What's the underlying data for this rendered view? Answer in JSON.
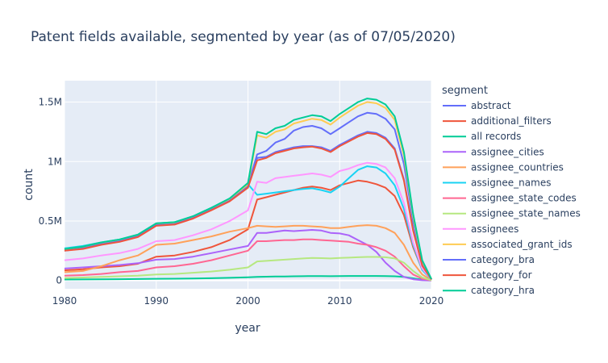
{
  "chart_data": {
    "type": "line",
    "title": "Patent fields available, segmented by year (as of 07/05/2020)",
    "xlabel": "year",
    "ylabel": "count",
    "xlim": [
      1980,
      2020
    ],
    "ylim": [
      -70000,
      1680000
    ],
    "x_ticks": [
      {
        "value": 1980,
        "label": "1980"
      },
      {
        "value": 1990,
        "label": "1990"
      },
      {
        "value": 2000,
        "label": "2000"
      },
      {
        "value": 2010,
        "label": "2010"
      },
      {
        "value": 2020,
        "label": "2020"
      }
    ],
    "y_ticks": [
      {
        "value": 0,
        "label": "0"
      },
      {
        "value": 500000,
        "label": "0.5M"
      },
      {
        "value": 1000000,
        "label": "1M"
      },
      {
        "value": 1500000,
        "label": "1.5M"
      }
    ],
    "legend": {
      "title": "segment",
      "placement": "right"
    },
    "grid": true,
    "background_color": "#e5ecf6",
    "x": [
      1980,
      1982,
      1984,
      1986,
      1988,
      1990,
      1992,
      1994,
      1996,
      1998,
      2000,
      2001,
      2002,
      2003,
      2004,
      2005,
      2006,
      2007,
      2008,
      2009,
      2010,
      2011,
      2012,
      2013,
      2014,
      2015,
      2016,
      2017,
      2018,
      2019,
      2020
    ],
    "series": [
      {
        "name": "abstract",
        "color": "#636efa",
        "values": [
          255000,
          275000,
          310000,
          335000,
          375000,
          470000,
          480000,
          530000,
          600000,
          680000,
          800000,
          1060000,
          1090000,
          1160000,
          1190000,
          1260000,
          1290000,
          1300000,
          1280000,
          1230000,
          1280000,
          1330000,
          1380000,
          1410000,
          1400000,
          1360000,
          1270000,
          980000,
          500000,
          150000,
          10000
        ]
      },
      {
        "name": "additional_filters",
        "color": "#EF553B",
        "values": [
          85000,
          95000,
          110000,
          120000,
          140000,
          200000,
          210000,
          240000,
          280000,
          340000,
          430000,
          680000,
          700000,
          720000,
          740000,
          760000,
          780000,
          790000,
          780000,
          760000,
          800000,
          820000,
          840000,
          830000,
          810000,
          780000,
          710000,
          550000,
          280000,
          90000,
          8000
        ]
      },
      {
        "name": "all records",
        "color": "#00cc96",
        "values": [
          8000,
          9000,
          10000,
          11000,
          12000,
          14000,
          15000,
          17000,
          19000,
          22000,
          26000,
          30000,
          32000,
          33000,
          34000,
          35000,
          36000,
          37000,
          37000,
          36000,
          37000,
          38000,
          38000,
          38000,
          38000,
          37000,
          35000,
          30000,
          18000,
          6000,
          1000
        ]
      },
      {
        "name": "assignee_cities",
        "color": "#ab63fa",
        "values": [
          100000,
          110000,
          120000,
          130000,
          145000,
          175000,
          180000,
          200000,
          230000,
          260000,
          290000,
          400000,
          400000,
          410000,
          420000,
          415000,
          420000,
          425000,
          420000,
          400000,
          395000,
          380000,
          340000,
          300000,
          240000,
          150000,
          80000,
          30000,
          10000,
          2000,
          0
        ]
      },
      {
        "name": "assignee_countries",
        "color": "#FFA15A",
        "values": [
          70000,
          80000,
          120000,
          170000,
          210000,
          300000,
          310000,
          340000,
          370000,
          410000,
          440000,
          460000,
          455000,
          450000,
          455000,
          460000,
          460000,
          455000,
          450000,
          440000,
          440000,
          450000,
          460000,
          465000,
          460000,
          440000,
          400000,
          300000,
          150000,
          50000,
          3000
        ]
      },
      {
        "name": "assignee_names",
        "color": "#19d3f3",
        "values": [
          270000,
          290000,
          320000,
          345000,
          385000,
          480000,
          490000,
          540000,
          610000,
          690000,
          810000,
          720000,
          730000,
          740000,
          750000,
          760000,
          770000,
          775000,
          760000,
          740000,
          790000,
          860000,
          930000,
          960000,
          950000,
          900000,
          800000,
          600000,
          300000,
          90000,
          5000
        ]
      },
      {
        "name": "assignee_state_codes",
        "color": "#FF6692",
        "values": [
          40000,
          45000,
          55000,
          70000,
          80000,
          110000,
          120000,
          140000,
          170000,
          210000,
          250000,
          330000,
          330000,
          335000,
          340000,
          340000,
          345000,
          345000,
          340000,
          335000,
          330000,
          325000,
          310000,
          300000,
          280000,
          250000,
          200000,
          120000,
          50000,
          15000,
          1000
        ]
      },
      {
        "name": "assignee_state_names",
        "color": "#B6E880",
        "values": [
          20000,
          25000,
          30000,
          35000,
          40000,
          50000,
          55000,
          65000,
          75000,
          90000,
          110000,
          160000,
          165000,
          170000,
          175000,
          180000,
          185000,
          190000,
          188000,
          185000,
          190000,
          192000,
          195000,
          198000,
          198000,
          195000,
          185000,
          150000,
          80000,
          25000,
          2000
        ]
      },
      {
        "name": "assignees",
        "color": "#FF97FF",
        "values": [
          170000,
          185000,
          210000,
          230000,
          265000,
          330000,
          340000,
          380000,
          430000,
          500000,
          590000,
          830000,
          820000,
          860000,
          870000,
          880000,
          890000,
          900000,
          890000,
          870000,
          920000,
          940000,
          970000,
          990000,
          980000,
          950000,
          860000,
          650000,
          320000,
          100000,
          8000
        ]
      },
      {
        "name": "associated_grant_ids",
        "color": "#FECB52",
        "values": [
          260000,
          280000,
          315000,
          340000,
          380000,
          475000,
          485000,
          535000,
          605000,
          685000,
          805000,
          1220000,
          1200000,
          1250000,
          1270000,
          1320000,
          1340000,
          1360000,
          1350000,
          1310000,
          1370000,
          1420000,
          1470000,
          1500000,
          1490000,
          1450000,
          1350000,
          1050000,
          540000,
          160000,
          12000
        ]
      },
      {
        "name": "category_bra",
        "color": "#636efa",
        "values": [
          250000,
          270000,
          305000,
          330000,
          370000,
          465000,
          475000,
          525000,
          595000,
          670000,
          790000,
          1030000,
          1040000,
          1080000,
          1100000,
          1120000,
          1130000,
          1130000,
          1120000,
          1090000,
          1140000,
          1180000,
          1220000,
          1250000,
          1240000,
          1200000,
          1110000,
          850000,
          430000,
          130000,
          9000
        ]
      },
      {
        "name": "category_for",
        "color": "#EF553B",
        "values": [
          250000,
          265000,
          300000,
          325000,
          365000,
          460000,
          470000,
          520000,
          590000,
          665000,
          780000,
          1010000,
          1030000,
          1070000,
          1090000,
          1110000,
          1120000,
          1125000,
          1110000,
          1080000,
          1130000,
          1170000,
          1210000,
          1240000,
          1230000,
          1190000,
          1100000,
          840000,
          420000,
          125000,
          9000
        ]
      },
      {
        "name": "category_hra",
        "color": "#00cc96",
        "values": [
          265000,
          285000,
          320000,
          345000,
          385000,
          480000,
          490000,
          540000,
          610000,
          690000,
          820000,
          1250000,
          1230000,
          1280000,
          1300000,
          1350000,
          1370000,
          1390000,
          1380000,
          1340000,
          1400000,
          1450000,
          1500000,
          1530000,
          1520000,
          1480000,
          1380000,
          1080000,
          560000,
          170000,
          12000
        ]
      }
    ]
  }
}
